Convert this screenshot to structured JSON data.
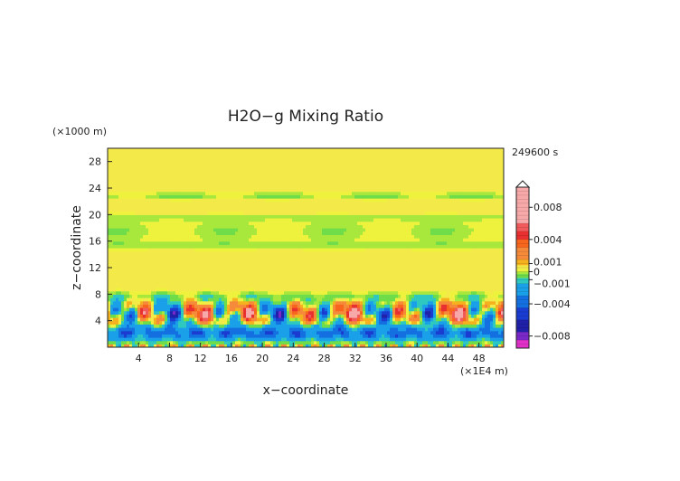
{
  "chart_data": {
    "type": "heatmap",
    "title": "H2O−g Mixing Ratio",
    "xlabel": "x−coordinate",
    "ylabel": "z−coordinate",
    "x_unit": "(×1E4 m)",
    "y_unit": "(×1000 m)",
    "time_label": "249600 s",
    "xlim": [
      0,
      51.2
    ],
    "ylim": [
      0,
      30
    ],
    "x_ticks": [
      4,
      8,
      12,
      16,
      20,
      24,
      28,
      32,
      36,
      40,
      44,
      48
    ],
    "y_ticks": [
      4,
      8,
      12,
      16,
      20,
      24,
      28
    ],
    "colorbar": {
      "range": [
        -0.0095,
        0.0105
      ],
      "tick_values": [
        0.008,
        0.004,
        0.001,
        0,
        -0.001,
        -0.004,
        -0.008
      ],
      "tick_labels": [
        "0.008",
        "0.004",
        "0.001",
        "0",
        "−0.001",
        "−0.004",
        "−0.008"
      ],
      "levels": [
        {
          "lo": 0.006,
          "hi": 0.0105,
          "color": "#f7a8a8"
        },
        {
          "lo": 0.005,
          "hi": 0.006,
          "color": "#f05a5a"
        },
        {
          "lo": 0.004,
          "hi": 0.005,
          "color": "#e83030"
        },
        {
          "lo": 0.003,
          "hi": 0.004,
          "color": "#f8661e"
        },
        {
          "lo": 0.0015,
          "hi": 0.003,
          "color": "#f58a3a"
        },
        {
          "lo": 0.0008,
          "hi": 0.0015,
          "color": "#f5b21e"
        },
        {
          "lo": 0.0003,
          "hi": 0.0008,
          "color": "#f3ea4a"
        },
        {
          "lo": 0.0,
          "hi": 0.0003,
          "color": "#eef23c"
        },
        {
          "lo": -0.0003,
          "hi": 0.0,
          "color": "#a8e83c"
        },
        {
          "lo": -0.0008,
          "hi": -0.0003,
          "color": "#6fdc4a"
        },
        {
          "lo": -0.0015,
          "hi": -0.0008,
          "color": "#2ec8c0"
        },
        {
          "lo": -0.003,
          "hi": -0.0015,
          "color": "#1aa0e8"
        },
        {
          "lo": -0.0045,
          "hi": -0.003,
          "color": "#1470e0"
        },
        {
          "lo": -0.006,
          "hi": -0.0045,
          "color": "#1a3cd0"
        },
        {
          "lo": -0.0075,
          "hi": -0.006,
          "color": "#2020a8"
        },
        {
          "lo": -0.0085,
          "hi": -0.0075,
          "color": "#7a28c8"
        },
        {
          "lo": -0.0095,
          "hi": -0.0085,
          "color": "#e030c8"
        }
      ]
    }
  }
}
